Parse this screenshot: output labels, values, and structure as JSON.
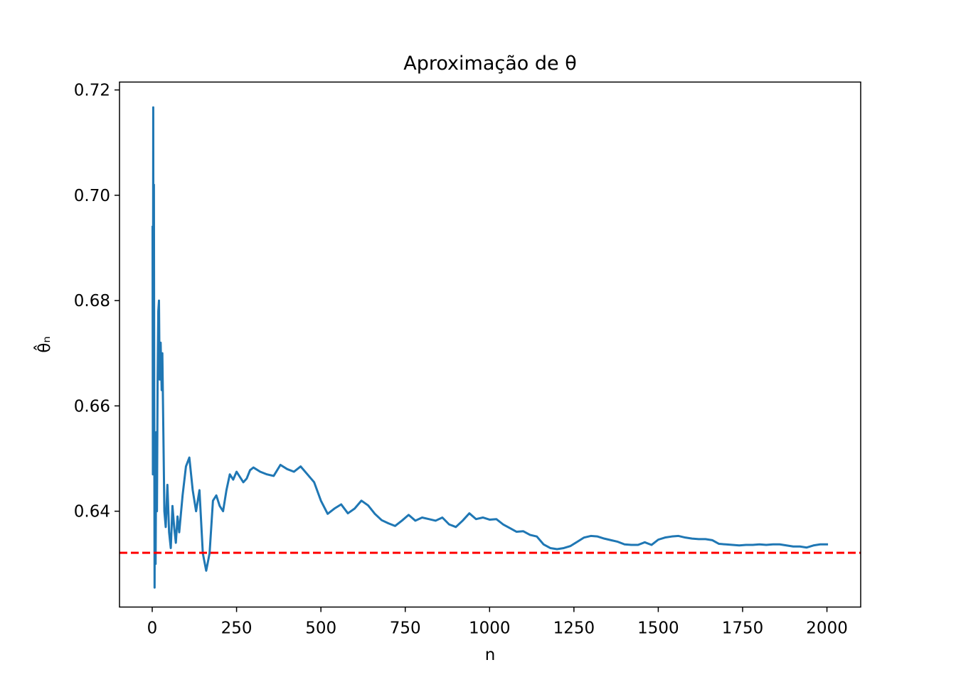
{
  "chart_data": {
    "type": "line",
    "title": "Aproximação de θ",
    "xlabel": "n",
    "ylabel": "θ̂ₙ",
    "xlim": [
      -97,
      2100
    ],
    "ylim": [
      0.6218,
      0.7215
    ],
    "x_ticks": [
      0,
      250,
      500,
      750,
      1000,
      1250,
      1500,
      1750,
      2000
    ],
    "x_tick_labels": [
      "0",
      "250",
      "500",
      "750",
      "1000",
      "1250",
      "1500",
      "1750",
      "2000"
    ],
    "y_ticks": [
      0.64,
      0.66,
      0.68,
      0.7,
      0.72
    ],
    "y_tick_labels": [
      "0.64",
      "0.66",
      "0.68",
      "0.70",
      "0.72"
    ],
    "grid": false,
    "series": [
      {
        "color": "#1f77b4",
        "x": [
          1,
          2,
          3,
          4,
          5,
          6,
          7,
          8,
          10,
          12,
          14,
          16,
          18,
          20,
          22,
          25,
          28,
          30,
          33,
          36,
          40,
          45,
          50,
          55,
          60,
          65,
          70,
          75,
          80,
          90,
          100,
          110,
          120,
          130,
          140,
          150,
          160,
          170,
          180,
          190,
          200,
          210,
          220,
          230,
          240,
          250,
          260,
          270,
          280,
          290,
          300,
          320,
          340,
          360,
          380,
          400,
          420,
          440,
          460,
          480,
          500,
          520,
          540,
          560,
          580,
          600,
          620,
          640,
          660,
          680,
          700,
          720,
          740,
          760,
          780,
          800,
          820,
          840,
          860,
          880,
          900,
          920,
          940,
          960,
          980,
          1000,
          1020,
          1040,
          1060,
          1080,
          1100,
          1120,
          1140,
          1160,
          1180,
          1200,
          1220,
          1240,
          1260,
          1280,
          1300,
          1320,
          1340,
          1360,
          1380,
          1400,
          1420,
          1440,
          1460,
          1480,
          1500,
          1520,
          1540,
          1560,
          1580,
          1600,
          1620,
          1640,
          1660,
          1680,
          1700,
          1720,
          1740,
          1760,
          1780,
          1800,
          1820,
          1840,
          1860,
          1880,
          1900,
          1920,
          1940,
          1960,
          1980,
          2000
        ],
        "y": [
          0.694,
          0.647,
          0.7167,
          0.65,
          0.702,
          0.66,
          0.6255,
          0.652,
          0.63,
          0.655,
          0.64,
          0.665,
          0.678,
          0.68,
          0.665,
          0.672,
          0.663,
          0.67,
          0.655,
          0.64,
          0.637,
          0.645,
          0.636,
          0.633,
          0.641,
          0.637,
          0.634,
          0.639,
          0.636,
          0.643,
          0.6485,
          0.6502,
          0.644,
          0.64,
          0.644,
          0.632,
          0.6287,
          0.632,
          0.642,
          0.643,
          0.641,
          0.64,
          0.644,
          0.647,
          0.646,
          0.6475,
          0.6465,
          0.6455,
          0.6462,
          0.6478,
          0.6483,
          0.6475,
          0.647,
          0.6467,
          0.6488,
          0.648,
          0.6475,
          0.6485,
          0.647,
          0.6455,
          0.642,
          0.6395,
          0.6405,
          0.6413,
          0.6396,
          0.6405,
          0.642,
          0.6411,
          0.6395,
          0.6383,
          0.6377,
          0.6372,
          0.6382,
          0.6393,
          0.6382,
          0.6388,
          0.6385,
          0.6382,
          0.6388,
          0.6375,
          0.637,
          0.6382,
          0.6396,
          0.6385,
          0.6388,
          0.6384,
          0.6385,
          0.6375,
          0.6368,
          0.6361,
          0.6362,
          0.6355,
          0.6352,
          0.6337,
          0.633,
          0.6328,
          0.633,
          0.6334,
          0.6342,
          0.635,
          0.6353,
          0.6352,
          0.6348,
          0.6345,
          0.6342,
          0.6337,
          0.6336,
          0.6336,
          0.6341,
          0.6336,
          0.6346,
          0.635,
          0.6352,
          0.6353,
          0.635,
          0.6348,
          0.6347,
          0.6347,
          0.6345,
          0.6338,
          0.6337,
          0.6336,
          0.6335,
          0.6336,
          0.6336,
          0.6337,
          0.6336,
          0.6337,
          0.6337,
          0.6335,
          0.6333,
          0.6333,
          0.6331,
          0.6335,
          0.6337,
          0.6337
        ]
      },
      {
        "color": "#ff0000",
        "style": "dashed",
        "y_constant": 0.6321
      }
    ]
  }
}
